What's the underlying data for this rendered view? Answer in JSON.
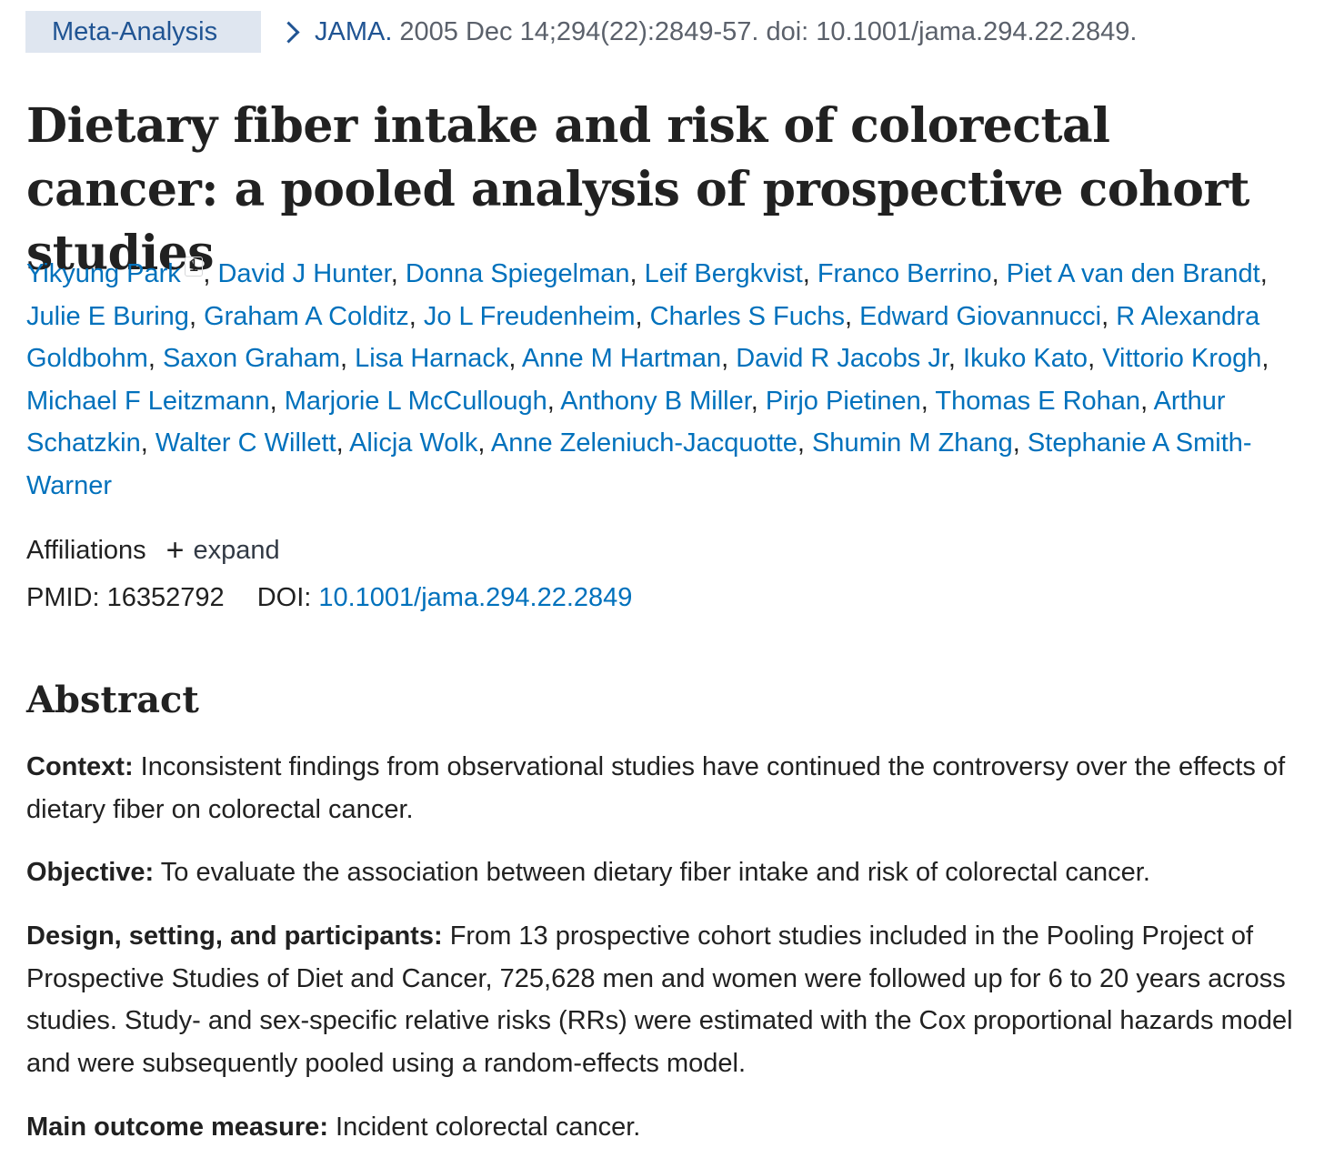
{
  "citation": {
    "badge": "Meta-Analysis",
    "journal": "JAMA.",
    "details": "2005 Dec 14;294(22):2849-57. doi: 10.1001/jama.294.22.2849."
  },
  "title": "Dietary fiber intake and risk of colorectal cancer: a pooled analysis of prospective cohort studies",
  "authors": [
    {
      "name": "Yikyung Park",
      "sup": "1"
    },
    {
      "name": "David J Hunter"
    },
    {
      "name": "Donna Spiegelman"
    },
    {
      "name": "Leif Bergkvist"
    },
    {
      "name": "Franco Berrino"
    },
    {
      "name": "Piet A van den Brandt"
    },
    {
      "name": "Julie E Buring"
    },
    {
      "name": "Graham A Colditz"
    },
    {
      "name": "Jo L Freudenheim"
    },
    {
      "name": "Charles S Fuchs"
    },
    {
      "name": "Edward Giovannucci"
    },
    {
      "name": "R Alexandra Goldbohm"
    },
    {
      "name": "Saxon Graham"
    },
    {
      "name": "Lisa Harnack"
    },
    {
      "name": "Anne M Hartman"
    },
    {
      "name": "David R Jacobs Jr"
    },
    {
      "name": "Ikuko Kato"
    },
    {
      "name": "Vittorio Krogh"
    },
    {
      "name": "Michael F Leitzmann"
    },
    {
      "name": "Marjorie L McCullough"
    },
    {
      "name": "Anthony B Miller"
    },
    {
      "name": "Pirjo Pietinen"
    },
    {
      "name": "Thomas E Rohan"
    },
    {
      "name": "Arthur Schatzkin"
    },
    {
      "name": "Walter C Willett"
    },
    {
      "name": "Alicja Wolk"
    },
    {
      "name": "Anne Zeleniuch-Jacquotte"
    },
    {
      "name": "Shumin M Zhang"
    },
    {
      "name": "Stephanie A Smith-Warner"
    }
  ],
  "affiliations": {
    "label": "Affiliations",
    "toggle_icon": "+",
    "toggle_label": "expand"
  },
  "identifiers": {
    "pmid_label": "PMID:",
    "pmid": "16352792",
    "doi_label": "DOI:",
    "doi": "10.1001/jama.294.22.2849"
  },
  "abstract": {
    "heading": "Abstract",
    "sections": [
      {
        "label": "Context:",
        "text": "Inconsistent findings from observational studies have continued the controversy over the effects of dietary fiber on colorectal cancer."
      },
      {
        "label": "Objective:",
        "text": "To evaluate the association between dietary fiber intake and risk of colorectal cancer."
      },
      {
        "label": "Design, setting, and participants:",
        "text": "From 13 prospective cohort studies included in the Pooling Project of Prospective Studies of Diet and Cancer, 725,628 men and women were followed up for 6 to 20 years across studies. Study- and sex-specific relative risks (RRs) were estimated with the Cox proportional hazards model and were subsequently pooled using a random-effects model."
      },
      {
        "label": "Main outcome measure:",
        "text": "Incident colorectal cancer."
      }
    ]
  }
}
